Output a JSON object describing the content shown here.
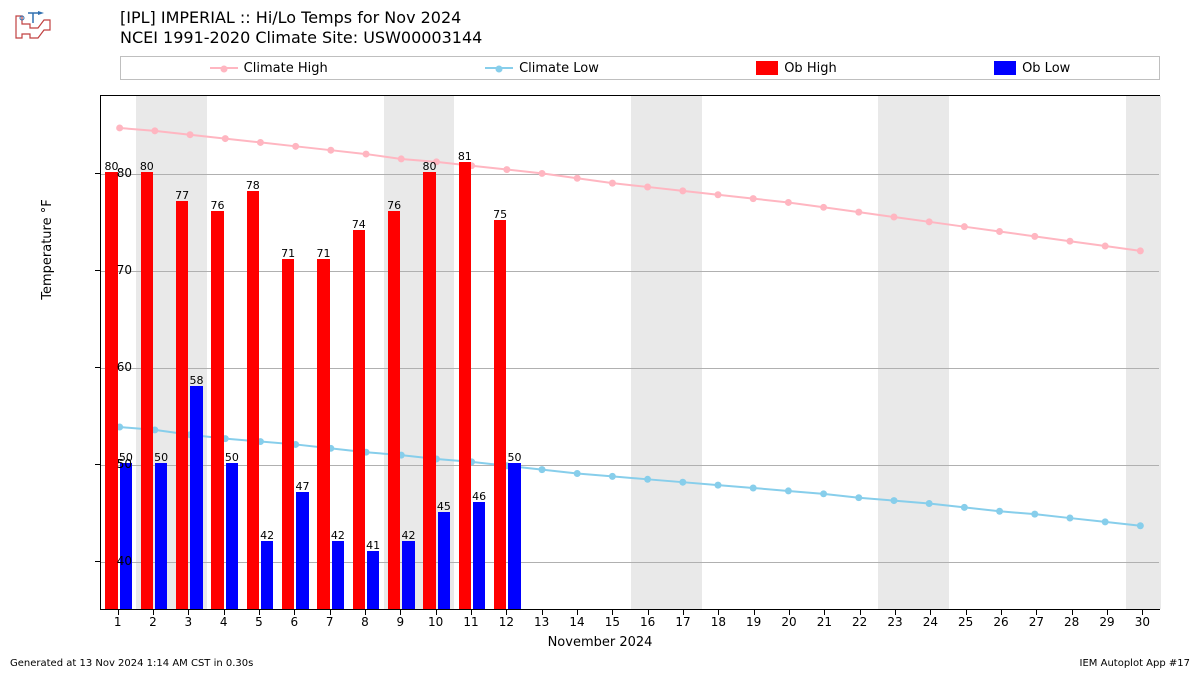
{
  "title_line1": "[IPL] IMPERIAL :: Hi/Lo Temps for Nov 2024",
  "title_line2": "NCEI 1991-2020 Climate Site: USW00003144",
  "legend": {
    "climate_high": "Climate High",
    "climate_low": "Climate Low",
    "ob_high": "Ob High",
    "ob_low": "Ob Low"
  },
  "chart": {
    "type": "bar+line",
    "xlabel": "November 2024",
    "ylabel": "Temperature °F",
    "ylim": [
      35,
      88
    ],
    "yticks": [
      40,
      50,
      60,
      70,
      80
    ],
    "days": [
      1,
      2,
      3,
      4,
      5,
      6,
      7,
      8,
      9,
      10,
      11,
      12,
      13,
      14,
      15,
      16,
      17,
      18,
      19,
      20,
      21,
      22,
      23,
      24,
      25,
      26,
      27,
      28,
      29,
      30
    ],
    "weekend_pairs": [
      [
        2,
        3
      ],
      [
        9,
        10
      ],
      [
        16,
        17
      ],
      [
        23,
        24
      ],
      [
        30,
        30
      ]
    ],
    "ob_high": [
      80,
      80,
      77,
      76,
      78,
      71,
      71,
      74,
      76,
      80,
      81,
      75
    ],
    "ob_low": [
      50,
      50,
      58,
      50,
      42,
      47,
      42,
      41,
      42,
      45,
      46,
      50
    ],
    "climate_high": [
      84.7,
      84.4,
      84.0,
      83.6,
      83.2,
      82.8,
      82.4,
      82.0,
      81.5,
      81.2,
      80.8,
      80.4,
      80.0,
      79.5,
      79.0,
      78.6,
      78.2,
      77.8,
      77.4,
      77.0,
      76.5,
      76.0,
      75.5,
      75.0,
      74.5,
      74.0,
      73.5,
      73.0,
      72.5,
      72.0
    ],
    "climate_low": [
      53.8,
      53.5,
      53.0,
      52.6,
      52.3,
      52.0,
      51.6,
      51.2,
      50.9,
      50.5,
      50.2,
      49.8,
      49.4,
      49.0,
      48.7,
      48.4,
      48.1,
      47.8,
      47.5,
      47.2,
      46.9,
      46.5,
      46.2,
      45.9,
      45.5,
      45.1,
      44.8,
      44.4,
      44.0,
      43.6
    ],
    "colors": {
      "climate_high": "#ffb6c1",
      "climate_low": "#87ceeb",
      "ob_high": "#ff0000",
      "ob_low": "#0000ff",
      "grid": "#b0b0b0",
      "weekend": "#e9e9e9",
      "background": "#ffffff"
    },
    "bar_width_ratio": 0.35,
    "marker_radius": 3.5,
    "line_width": 2
  },
  "footer_left": "Generated at 13 Nov 2024 1:14 AM CST in 0.30s",
  "footer_right": "IEM Autoplot App #17"
}
